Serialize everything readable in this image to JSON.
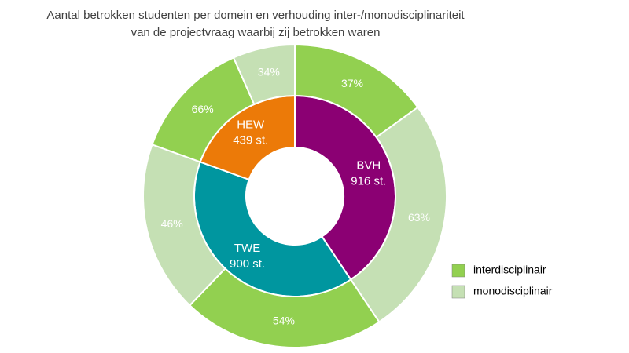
{
  "chart_data": {
    "type": "sunburst",
    "title": [
      "Aantal betrokken studenten per domein en verhouding inter-/monodisciplinariteit",
      "van de projectvraag waarbij zij betrokken waren"
    ],
    "categories": [
      "BVH",
      "TWE",
      "HEW"
    ],
    "values": [
      916,
      900,
      439
    ],
    "value_labels": [
      "916 st.",
      "900 st.",
      "439 st."
    ],
    "colors": [
      "#8b0073",
      "#00969f",
      "#ec7a08"
    ],
    "series": [
      {
        "name": "interdisciplinair",
        "color": "#92d050",
        "values": [
          37,
          54,
          66
        ],
        "value_labels": [
          "37%",
          "54%",
          "66%"
        ]
      },
      {
        "name": "monodisciplinair",
        "color": "#c5e0b4",
        "values": [
          63,
          46,
          34
        ],
        "value_labels": [
          "63%",
          "46%",
          "34%"
        ]
      }
    ],
    "legend": "right"
  }
}
